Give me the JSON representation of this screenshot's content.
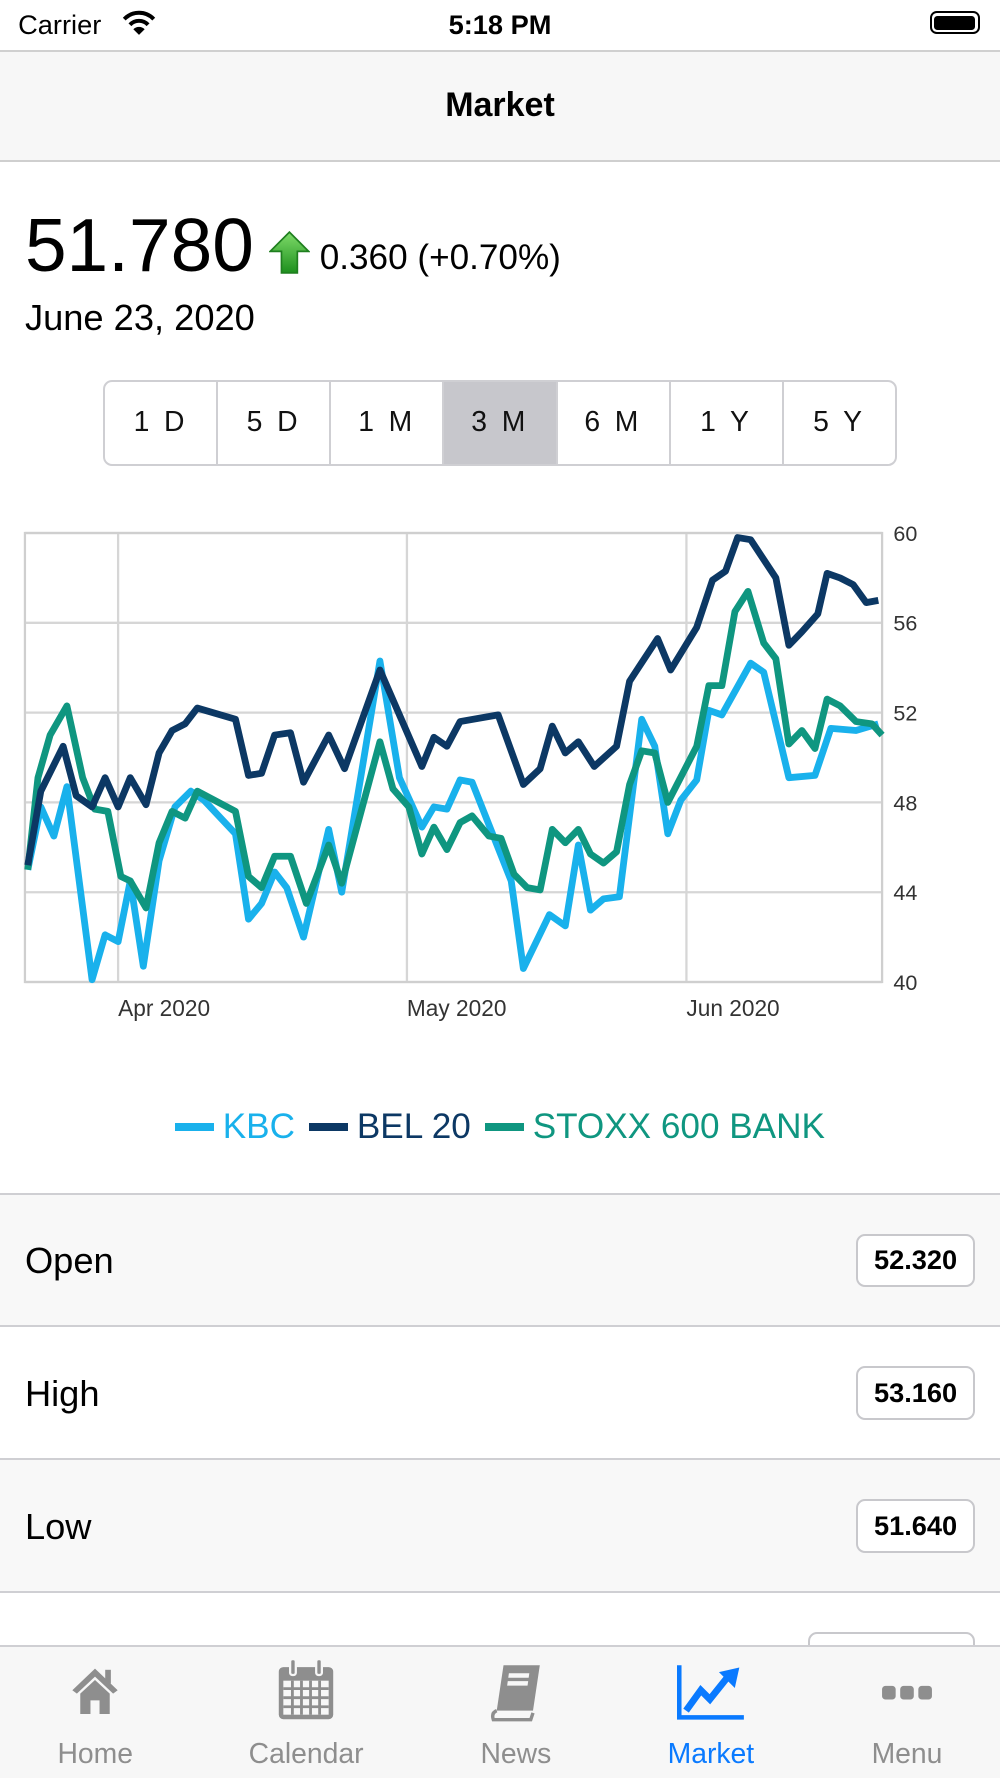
{
  "status_bar": {
    "carrier": "Carrier",
    "time": "5:18 PM"
  },
  "nav": {
    "title": "Market"
  },
  "quote": {
    "price": "51.780",
    "change": "0.360 (+0.70%)",
    "direction": "up",
    "date": "June 23, 2020"
  },
  "ranges": {
    "options": [
      "1 D",
      "5 D",
      "1 M",
      "3 M",
      "6 M",
      "1 Y",
      "5 Y"
    ],
    "selected": "3 M"
  },
  "chart_data": {
    "type": "line",
    "xlabel": "",
    "ylabel": "",
    "x_unit": "days since start of 3M window",
    "xlim": [
      0,
      92
    ],
    "ylim": [
      40,
      60
    ],
    "y_ticks": [
      40,
      44,
      48,
      52,
      56,
      60
    ],
    "x_ticks": [
      {
        "x": 10,
        "label": "Apr 2020"
      },
      {
        "x": 41,
        "label": "May 2020"
      },
      {
        "x": 71,
        "label": "Jun 2020"
      }
    ],
    "grid": true,
    "legend_position": "bottom-center",
    "series": [
      {
        "name": "KBC",
        "color": "#19b1ec",
        "points": [
          [
            0.3,
            45.0
          ],
          [
            1.7,
            47.8
          ],
          [
            3.1,
            46.5
          ],
          [
            4.5,
            48.7
          ],
          [
            7.2,
            40.1
          ],
          [
            8.6,
            42.1
          ],
          [
            10,
            41.8
          ],
          [
            11.3,
            44.5
          ],
          [
            12.7,
            40.7
          ],
          [
            14.4,
            45.4
          ],
          [
            16.1,
            47.8
          ],
          [
            17.8,
            48.5
          ],
          [
            19.2,
            48.1
          ],
          [
            22.6,
            46.6
          ],
          [
            24,
            42.8
          ],
          [
            25.4,
            43.5
          ],
          [
            26.8,
            44.9
          ],
          [
            28.1,
            44.2
          ],
          [
            29.9,
            42.0
          ],
          [
            32.6,
            46.8
          ],
          [
            34,
            44.0
          ],
          [
            38.1,
            54.3
          ],
          [
            40.2,
            49.1
          ],
          [
            42.6,
            46.9
          ],
          [
            43.9,
            47.8
          ],
          [
            45.3,
            47.7
          ],
          [
            46.7,
            49.0
          ],
          [
            48,
            48.9
          ],
          [
            52.2,
            44.5
          ],
          [
            53.5,
            40.6
          ],
          [
            56.3,
            43.0
          ],
          [
            58,
            42.5
          ],
          [
            59.4,
            46.1
          ],
          [
            60.7,
            43.2
          ],
          [
            62.1,
            43.7
          ],
          [
            63.8,
            43.8
          ],
          [
            66.2,
            51.7
          ],
          [
            67.6,
            50.5
          ],
          [
            69,
            46.6
          ],
          [
            70.4,
            48.1
          ],
          [
            72.1,
            49.0
          ],
          [
            73.4,
            52.1
          ],
          [
            74.8,
            51.9
          ],
          [
            77.9,
            54.2
          ],
          [
            79.3,
            53.8
          ],
          [
            82,
            49.1
          ],
          [
            84.8,
            49.2
          ],
          [
            86.5,
            51.3
          ],
          [
            89.2,
            51.2
          ],
          [
            91.6,
            51.5
          ]
        ]
      },
      {
        "name": "BEL 20",
        "color": "#0c3864",
        "points": [
          [
            0.3,
            45.2
          ],
          [
            1.7,
            48.5
          ],
          [
            4.1,
            50.5
          ],
          [
            5.5,
            48.3
          ],
          [
            7.2,
            47.8
          ],
          [
            8.6,
            49.1
          ],
          [
            10,
            47.8
          ],
          [
            11.3,
            49.1
          ],
          [
            13,
            47.9
          ],
          [
            14.4,
            50.2
          ],
          [
            15.8,
            51.2
          ],
          [
            17.2,
            51.5
          ],
          [
            18.5,
            52.2
          ],
          [
            22.6,
            51.7
          ],
          [
            24,
            49.2
          ],
          [
            25.4,
            49.3
          ],
          [
            26.8,
            51.0
          ],
          [
            28.5,
            51.1
          ],
          [
            29.9,
            48.9
          ],
          [
            32.6,
            51.0
          ],
          [
            34.3,
            49.5
          ],
          [
            38.1,
            53.9
          ],
          [
            42.6,
            49.6
          ],
          [
            43.9,
            50.9
          ],
          [
            45.3,
            50.5
          ],
          [
            46.7,
            51.6
          ],
          [
            50.8,
            51.9
          ],
          [
            53.5,
            48.8
          ],
          [
            55.3,
            49.5
          ],
          [
            56.6,
            51.4
          ],
          [
            58,
            50.2
          ],
          [
            59.4,
            50.7
          ],
          [
            61.1,
            49.6
          ],
          [
            63.5,
            50.5
          ],
          [
            64.9,
            53.4
          ],
          [
            67.9,
            55.3
          ],
          [
            69.3,
            53.9
          ],
          [
            72.1,
            55.8
          ],
          [
            73.8,
            57.9
          ],
          [
            75.2,
            58.3
          ],
          [
            76.5,
            59.8
          ],
          [
            77.9,
            59.7
          ],
          [
            80.6,
            58.0
          ],
          [
            82,
            55.0
          ],
          [
            83.4,
            55.6
          ],
          [
            85.1,
            56.4
          ],
          [
            86.1,
            58.2
          ],
          [
            87.5,
            58.0
          ],
          [
            88.9,
            57.7
          ],
          [
            90.3,
            56.9
          ],
          [
            91.6,
            57.0
          ]
        ]
      },
      {
        "name": "STOXX 600 BANK",
        "color": "#0f9680",
        "points": [
          [
            0.3,
            45.0
          ],
          [
            1.4,
            49.1
          ],
          [
            2.7,
            51.0
          ],
          [
            4.5,
            52.3
          ],
          [
            6.2,
            49.1
          ],
          [
            7.5,
            47.7
          ],
          [
            8.9,
            47.6
          ],
          [
            10.3,
            44.7
          ],
          [
            11.3,
            44.5
          ],
          [
            13,
            43.3
          ],
          [
            14.4,
            46.2
          ],
          [
            15.8,
            47.6
          ],
          [
            17.2,
            47.3
          ],
          [
            18.5,
            48.5
          ],
          [
            22.6,
            47.6
          ],
          [
            24,
            44.7
          ],
          [
            25.4,
            44.2
          ],
          [
            26.8,
            45.6
          ],
          [
            28.5,
            45.6
          ],
          [
            30.2,
            43.5
          ],
          [
            32.6,
            46.1
          ],
          [
            34,
            44.4
          ],
          [
            38.1,
            50.7
          ],
          [
            39.5,
            48.6
          ],
          [
            41.2,
            47.8
          ],
          [
            42.6,
            45.7
          ],
          [
            43.9,
            46.9
          ],
          [
            45.3,
            45.9
          ],
          [
            46.7,
            47.1
          ],
          [
            48,
            47.4
          ],
          [
            49.8,
            46.5
          ],
          [
            51.1,
            46.4
          ],
          [
            52.5,
            44.8
          ],
          [
            53.9,
            44.2
          ],
          [
            55.3,
            44.1
          ],
          [
            56.6,
            46.8
          ],
          [
            58,
            46.2
          ],
          [
            59.4,
            46.8
          ],
          [
            60.7,
            45.7
          ],
          [
            62.1,
            45.3
          ],
          [
            63.5,
            45.8
          ],
          [
            64.9,
            48.8
          ],
          [
            66.2,
            50.3
          ],
          [
            67.6,
            50.2
          ],
          [
            69,
            48.0
          ],
          [
            72.1,
            50.5
          ],
          [
            73.4,
            53.2
          ],
          [
            74.8,
            53.2
          ],
          [
            76.2,
            56.5
          ],
          [
            77.6,
            57.4
          ],
          [
            79.3,
            55.1
          ],
          [
            80.6,
            54.4
          ],
          [
            82,
            50.6
          ],
          [
            83.4,
            51.2
          ],
          [
            84.8,
            50.4
          ],
          [
            86.1,
            52.6
          ],
          [
            87.5,
            52.3
          ],
          [
            89.2,
            51.6
          ],
          [
            90.9,
            51.5
          ],
          [
            92,
            51.0
          ]
        ]
      }
    ]
  },
  "stats": [
    {
      "label": "Open",
      "value": "52.320"
    },
    {
      "label": "High",
      "value": "53.160"
    },
    {
      "label": "Low",
      "value": "51.640"
    }
  ],
  "tabs": [
    {
      "label": "Home",
      "icon": "home-icon"
    },
    {
      "label": "Calendar",
      "icon": "calendar-icon"
    },
    {
      "label": "News",
      "icon": "book-icon"
    },
    {
      "label": "Market",
      "icon": "chart-up-icon",
      "active": true
    },
    {
      "label": "Menu",
      "icon": "more-icon"
    }
  ],
  "colors": {
    "accent": "#0a7aff",
    "up": "#2a9d2a",
    "inactive": "#8e8e8e"
  }
}
